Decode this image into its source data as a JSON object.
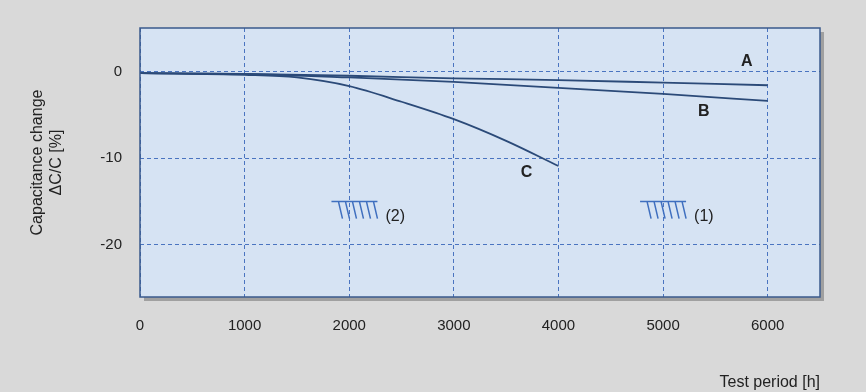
{
  "chart_data": {
    "type": "line",
    "x_label": "Test period [h]",
    "y_label": [
      "Capacitance change",
      "ΔC/C [%]"
    ],
    "xlim": [
      0,
      6500
    ],
    "ylim": [
      -26,
      5
    ],
    "xticks": [
      0,
      1000,
      2000,
      3000,
      4000,
      5000,
      6000
    ],
    "yticks": [
      -20,
      -10,
      0
    ],
    "grid": true,
    "series": [
      {
        "name": "A",
        "color": "#2b4a78",
        "line_style": "solid",
        "x": [
          0,
          1000,
          2000,
          3000,
          4000,
          5000,
          6000
        ],
        "values": [
          -0.2,
          -0.3,
          -0.5,
          -0.8,
          -1.0,
          -1.3,
          -1.6
        ],
        "label_position": [
          5800,
          1.1
        ]
      },
      {
        "name": "B",
        "color": "#2b4a78",
        "line_style": "solid",
        "x": [
          0,
          1000,
          2000,
          3000,
          4000,
          5000,
          6000
        ],
        "values": [
          -0.2,
          -0.3,
          -0.7,
          -1.2,
          -1.9,
          -2.6,
          -3.4
        ],
        "label_position": [
          5390,
          -4.6
        ]
      },
      {
        "name": "C",
        "color": "#2b4a78",
        "line_style": "solid",
        "x": [
          0,
          1000,
          1500,
          2000,
          2500,
          3000,
          3500,
          4000
        ],
        "values": [
          -0.2,
          -0.4,
          -0.7,
          -1.7,
          -3.5,
          -5.5,
          -8.0,
          -10.9
        ],
        "label_position": [
          3695,
          -11.7
        ]
      }
    ],
    "annotations": [
      {
        "text": "(2)",
        "x": 2050,
        "y": -15,
        "marker": "limit"
      },
      {
        "text": "(1)",
        "x": 5000,
        "y": -15,
        "marker": "limit"
      }
    ]
  }
}
